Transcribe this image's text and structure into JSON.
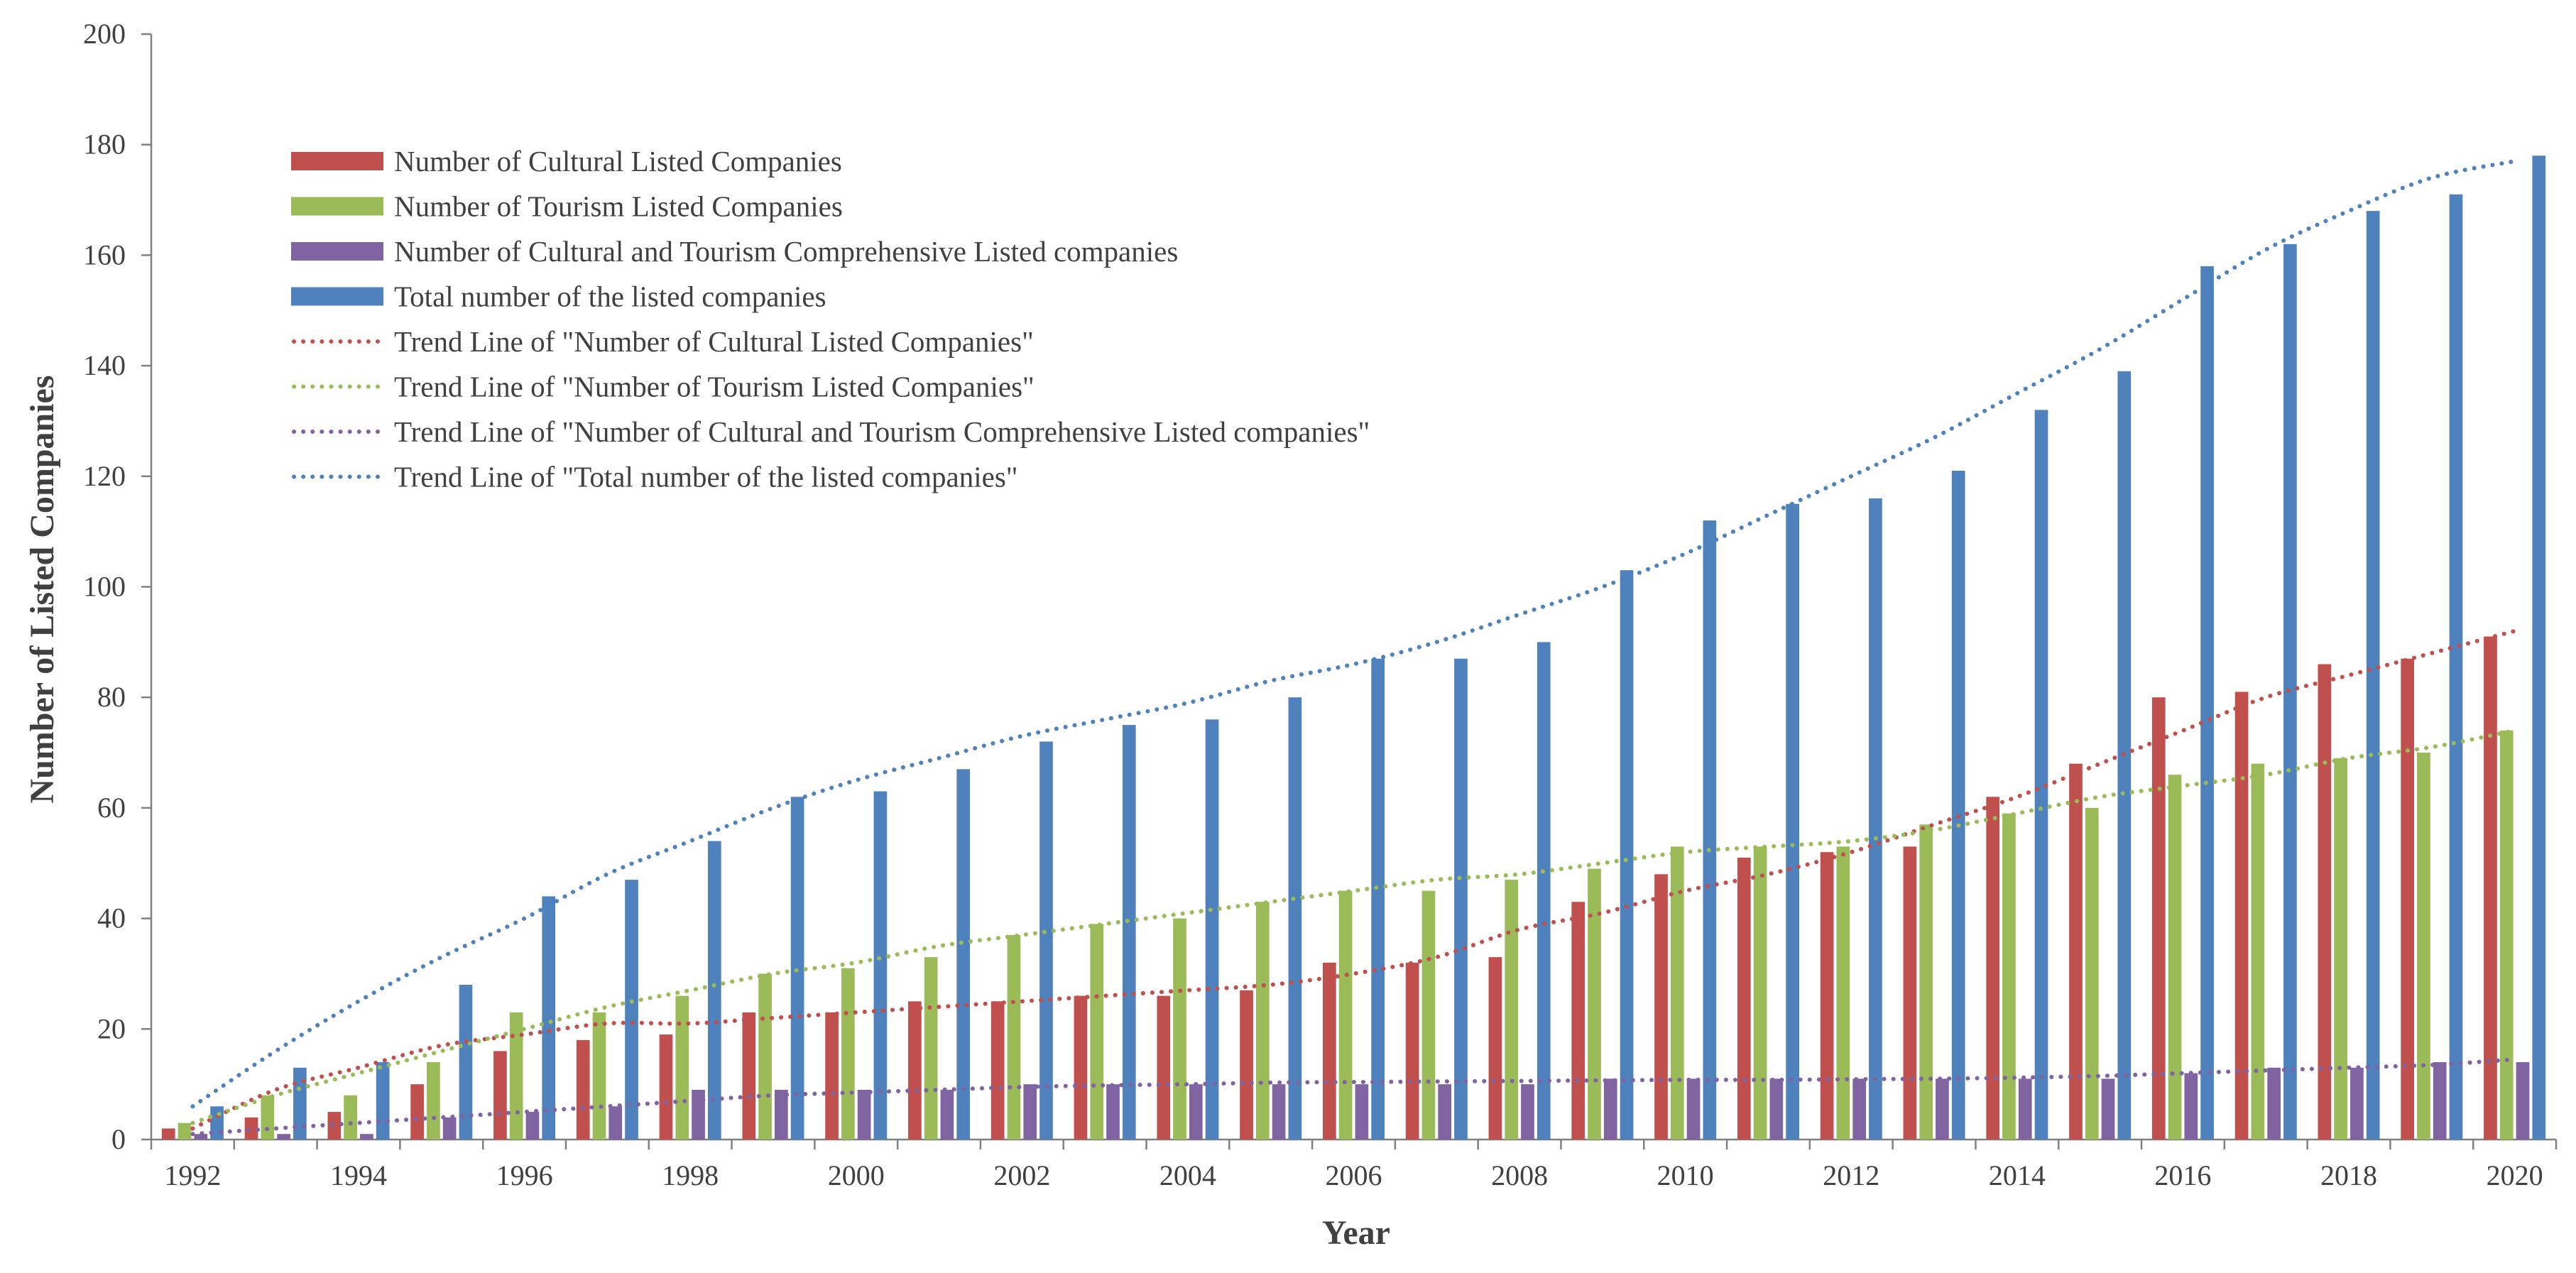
{
  "chart_data": {
    "type": "bar",
    "title": "",
    "xlabel": "Year",
    "ylabel": "Number of Listed Companies",
    "ylim": [
      0,
      200
    ],
    "yticks": [
      0,
      20,
      40,
      60,
      80,
      100,
      120,
      140,
      160,
      180,
      200
    ],
    "categories": [
      "1992",
      "1993",
      "1994",
      "1995",
      "1996",
      "1997",
      "1998",
      "1999",
      "2000",
      "2001",
      "2002",
      "2003",
      "2004",
      "2005",
      "2006",
      "2007",
      "2008",
      "2009",
      "2010",
      "2011",
      "2012",
      "2013",
      "2014",
      "2015",
      "2016",
      "2017",
      "2018",
      "2019",
      "2020"
    ],
    "xtick_labels": [
      "1992",
      "1994",
      "1996",
      "1998",
      "2000",
      "2002",
      "2004",
      "2006",
      "2008",
      "2010",
      "2012",
      "2014",
      "2016",
      "2018",
      "2020"
    ],
    "grid": false,
    "legend_position": "top-left",
    "series": [
      {
        "name": "Number of Cultural Listed Companies",
        "color": "#c0504d",
        "values": [
          2,
          4,
          5,
          10,
          16,
          18,
          19,
          23,
          23,
          25,
          25,
          26,
          26,
          27,
          32,
          32,
          33,
          43,
          48,
          51,
          52,
          53,
          62,
          68,
          80,
          81,
          86,
          87,
          91
        ]
      },
      {
        "name": "Number of Tourism Listed Companies",
        "color": "#9bbb59",
        "values": [
          3,
          8,
          8,
          14,
          23,
          23,
          26,
          30,
          31,
          33,
          37,
          39,
          40,
          43,
          45,
          45,
          47,
          49,
          53,
          53,
          53,
          57,
          59,
          60,
          66,
          68,
          69,
          70,
          74
        ]
      },
      {
        "name": "Number of Cultural and Tourism Comprehensive Listed companies",
        "color": "#8064a2",
        "values": [
          1,
          1,
          1,
          4,
          5,
          6,
          9,
          9,
          9,
          9,
          10,
          10,
          10,
          10,
          10,
          10,
          10,
          11,
          11,
          11,
          11,
          11,
          11,
          11,
          12,
          13,
          13,
          14,
          14
        ]
      },
      {
        "name": "Total number of the listed companies",
        "color": "#4f81bd",
        "values": [
          6,
          13,
          14,
          28,
          44,
          47,
          54,
          62,
          63,
          67,
          72,
          75,
          76,
          80,
          87,
          87,
          90,
          103,
          112,
          115,
          116,
          121,
          132,
          139,
          158,
          162,
          168,
          171,
          178
        ]
      }
    ],
    "trendlines": [
      {
        "name": "Trend Line of \"Number of Cultural Listed Companies\"",
        "color": "#c0504d",
        "values": [
          2,
          9,
          13,
          17,
          19,
          21,
          21,
          22,
          23,
          24,
          25,
          26,
          27,
          28,
          30,
          33,
          38,
          41,
          45,
          48,
          52,
          57,
          62,
          68,
          74,
          80,
          84,
          88,
          92
        ]
      },
      {
        "name": "Trend Line of \"Number of Tourism Listed Companies\"",
        "color": "#9bbb59",
        "values": [
          3,
          8,
          12,
          16,
          20,
          24,
          27,
          30,
          32,
          35,
          37,
          39,
          41,
          43,
          45,
          47,
          48,
          50,
          52,
          53,
          54,
          56,
          59,
          62,
          64,
          66,
          69,
          71,
          74
        ]
      },
      {
        "name": "Trend Line of \"Number of Cultural and Tourism Comprehensive Listed companies\"",
        "color": "#8064a2",
        "values": [
          1,
          2,
          3,
          4,
          5,
          6,
          7,
          8,
          8.5,
          9,
          9.5,
          9.8,
          10,
          10.3,
          10.4,
          10.5,
          10.6,
          10.7,
          10.8,
          10.8,
          10.9,
          11,
          11.2,
          11.5,
          12,
          12.5,
          13,
          13.5,
          14.5
        ]
      },
      {
        "name": "Trend Line of \"Total number of the listed companies\"",
        "color": "#4f81bd",
        "values": [
          6,
          16,
          25,
          33,
          40,
          48,
          54,
          60,
          65,
          69,
          73,
          76,
          79,
          83,
          86,
          90,
          95,
          100,
          106,
          113,
          120,
          127,
          135,
          143,
          152,
          161,
          168,
          174,
          177
        ]
      }
    ]
  }
}
